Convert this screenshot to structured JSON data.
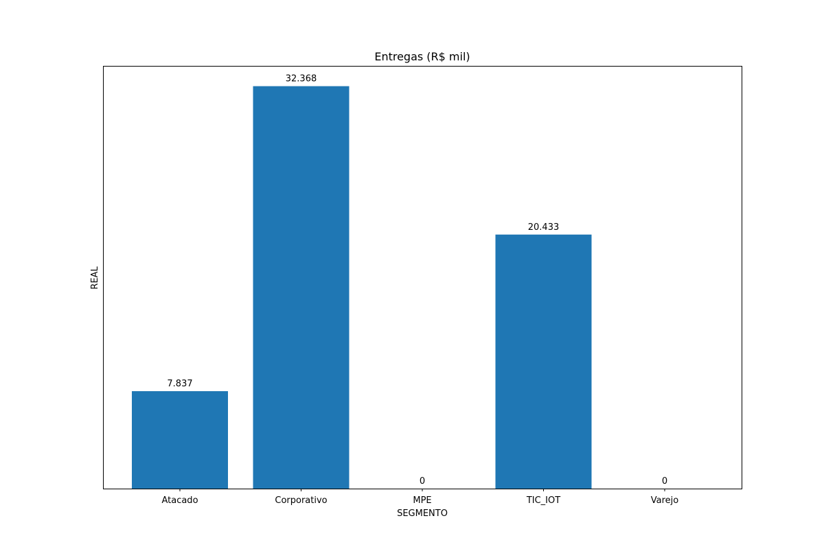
{
  "chart_data": {
    "type": "bar",
    "title": "Entregas (R$ mil)",
    "xlabel": "SEGMENTO",
    "ylabel": "REAL",
    "categories": [
      "Atacado",
      "Corporativo",
      "MPE",
      "TIC_IOT",
      "Varejo"
    ],
    "values": [
      7.837,
      32.368,
      0,
      20.433,
      0
    ],
    "value_labels": [
      "7.837",
      "32.368",
      "0",
      "20.433",
      "0"
    ],
    "ylim": [
      0,
      34
    ],
    "y_ticks_visible": false,
    "grid": false,
    "legend": "none",
    "bar_color": "#1f77b4"
  }
}
